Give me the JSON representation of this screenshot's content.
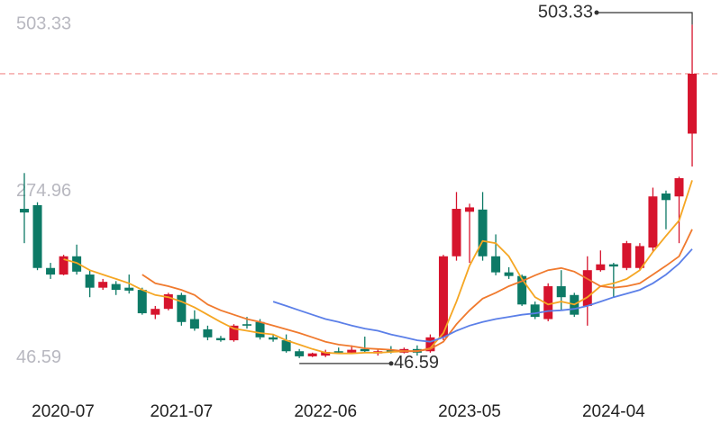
{
  "chart_data": {
    "type": "candlestick",
    "categories": [
      "2020-07",
      null,
      null,
      null,
      null,
      null,
      null,
      null,
      null,
      null,
      null,
      null,
      "2021-07",
      null,
      null,
      null,
      null,
      null,
      null,
      null,
      null,
      null,
      null,
      "2022-06",
      null,
      null,
      null,
      null,
      null,
      null,
      null,
      null,
      null,
      null,
      "2023-05",
      null,
      null,
      null,
      null,
      null,
      null,
      null,
      null,
      null,
      null,
      "2024-04",
      null,
      null,
      null,
      null,
      null,
      null
    ],
    "open": [
      251,
      256,
      170,
      161,
      186,
      161,
      143,
      148,
      143,
      140,
      106,
      114,
      133,
      100,
      86,
      74,
      71,
      93,
      96,
      75,
      71,
      56,
      49,
      50,
      56,
      54,
      59,
      53,
      58,
      54,
      59,
      56,
      75,
      186,
      247,
      250,
      186,
      164,
      159,
      120,
      100,
      145,
      133,
      118,
      167,
      175,
      170,
      170,
      198,
      272,
      268,
      354
    ],
    "close": [
      246,
      170,
      161,
      186,
      165,
      143,
      151,
      140,
      139,
      108,
      114,
      134,
      96,
      87,
      75,
      71,
      91,
      91,
      75,
      72,
      56,
      49,
      53,
      55,
      54,
      58,
      56,
      56,
      55,
      59,
      54,
      75,
      186,
      251,
      253,
      186,
      164,
      159,
      120,
      103,
      145,
      130,
      106,
      167,
      175,
      172,
      204,
      200,
      268,
      263,
      293,
      436
    ],
    "high": [
      300,
      260,
      177,
      188,
      202,
      167,
      155,
      152,
      161,
      143,
      118,
      136,
      136,
      112,
      91,
      77,
      93,
      103,
      100,
      79,
      79,
      59,
      54,
      58,
      61,
      64,
      76,
      59,
      63,
      61,
      64,
      79,
      188,
      274,
      258,
      274,
      216,
      171,
      161,
      124,
      149,
      167,
      136,
      186,
      194,
      177,
      207,
      204,
      280,
      276,
      295,
      503.33
    ],
    "low": [
      204,
      167,
      155,
      160,
      161,
      130,
      140,
      133,
      135,
      106,
      100,
      112,
      91,
      84,
      71,
      69,
      69,
      87,
      72,
      69,
      54,
      46.59,
      48,
      48,
      52,
      53,
      54,
      50,
      53,
      53,
      50,
      54,
      71,
      180,
      177,
      180,
      160,
      155,
      118,
      100,
      97,
      112,
      103,
      91,
      165,
      130,
      167,
      167,
      192,
      223,
      204,
      309
    ],
    "up_color": "#d6142d",
    "down_color": "#0d7a66",
    "series": [
      {
        "color": "#f5a623",
        "values": [
          null,
          null,
          null,
          182,
          177,
          167,
          161,
          155,
          149,
          140,
          133,
          130,
          124,
          116,
          106,
          96,
          87,
          84,
          81,
          79,
          71,
          65,
          59,
          54,
          53,
          53,
          54,
          54,
          55,
          56,
          56,
          60,
          81,
          124,
          173,
          207,
          204,
          186,
          155,
          130,
          120,
          124,
          120,
          130,
          145,
          149,
          155,
          167,
          192,
          214,
          235,
          290
        ]
      },
      {
        "color": "#f07a2e",
        "values": [
          null,
          null,
          null,
          null,
          null,
          null,
          null,
          null,
          null,
          161,
          149,
          145,
          140,
          133,
          120,
          112,
          106,
          100,
          96,
          91,
          86,
          81,
          75,
          69,
          65,
          63,
          60,
          59,
          58,
          56,
          56,
          59,
          69,
          93,
          112,
          128,
          136,
          145,
          152,
          160,
          167,
          170,
          165,
          155,
          145,
          143,
          145,
          149,
          161,
          173,
          186,
          223
        ]
      },
      {
        "color": "#5b7fe8",
        "values": [
          null,
          null,
          null,
          null,
          null,
          null,
          null,
          null,
          null,
          null,
          null,
          null,
          null,
          null,
          null,
          null,
          null,
          null,
          null,
          124,
          118,
          112,
          106,
          100,
          96,
          91,
          87,
          84,
          79,
          75,
          71,
          69,
          75,
          84,
          91,
          96,
          100,
          103,
          106,
          108,
          111,
          112,
          114,
          118,
          124,
          130,
          135,
          140,
          149,
          161,
          176,
          196
        ]
      }
    ],
    "reference_line": {
      "value": 436,
      "color": "#f08a8a"
    },
    "ylim": [
      7,
      537
    ],
    "yticks": [
      46.59,
      274.96,
      503.33
    ]
  }
}
